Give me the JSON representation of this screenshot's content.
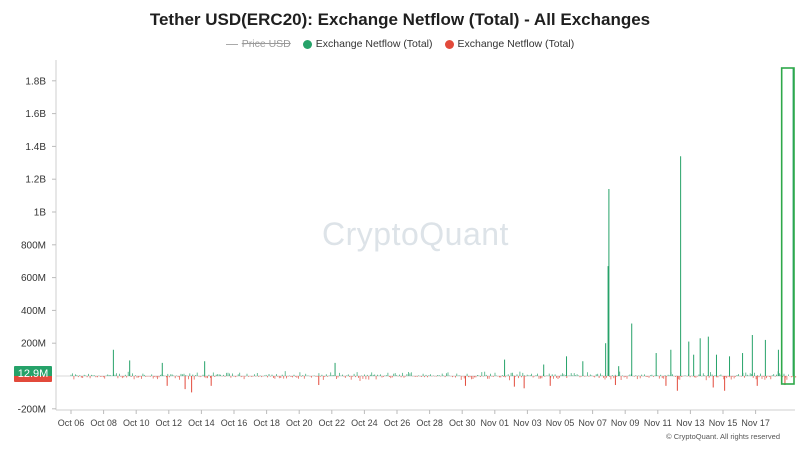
{
  "chart_data": {
    "type": "bar",
    "title": "Tether USD(ERC20): Exchange Netflow (Total) - All Exchanges",
    "legend": [
      {
        "name": "Price USD",
        "color": "#aaaaaa",
        "disabled": true,
        "marker": "line"
      },
      {
        "name": "Exchange Netflow (Total)",
        "color": "#26a269",
        "marker": "dot"
      },
      {
        "name": "Exchange Netflow (Total)",
        "color": "#e24a3b",
        "marker": "dot"
      }
    ],
    "y_ticks": [
      {
        "value": 1800000000,
        "label": "1.8B"
      },
      {
        "value": 1600000000,
        "label": "1.6B"
      },
      {
        "value": 1400000000,
        "label": "1.4B"
      },
      {
        "value": 1200000000,
        "label": "1.2B"
      },
      {
        "value": 1000000000,
        "label": "1B"
      },
      {
        "value": 800000000,
        "label": "800M"
      },
      {
        "value": 600000000,
        "label": "600M"
      },
      {
        "value": 400000000,
        "label": "400M"
      },
      {
        "value": 200000000,
        "label": "200M"
      },
      {
        "value": -200000000,
        "label": "-200M"
      }
    ],
    "ylim": [
      -200000000,
      1900000000
    ],
    "x_ticks": [
      "Oct 06",
      "Oct 08",
      "Oct 10",
      "Oct 12",
      "Oct 14",
      "Oct 16",
      "Oct 18",
      "Oct 20",
      "Oct 22",
      "Oct 24",
      "Oct 26",
      "Oct 28",
      "Oct 30",
      "Nov 01",
      "Nov 03",
      "Nov 05",
      "Nov 07",
      "Nov 09",
      "Nov 11",
      "Nov 13",
      "Nov 15",
      "Nov 17"
    ],
    "x_range_days": [
      0,
      44.5
    ],
    "positive_color": "#26a269",
    "negative_color": "#e24a3b",
    "spikes": [
      {
        "day": 2.6,
        "value": 160000000
      },
      {
        "day": 3.6,
        "value": 95000000
      },
      {
        "day": 5.6,
        "value": 80000000
      },
      {
        "day": 8.2,
        "value": 90000000
      },
      {
        "day": 16.2,
        "value": 80000000
      },
      {
        "day": 26.6,
        "value": 100000000
      },
      {
        "day": 29.0,
        "value": 70000000
      },
      {
        "day": 30.4,
        "value": 120000000
      },
      {
        "day": 31.4,
        "value": 90000000
      },
      {
        "day": 33.6,
        "value": 60000000
      },
      {
        "day": 35.9,
        "value": 140000000
      },
      {
        "day": 36.8,
        "value": 160000000
      },
      {
        "day": 38.2,
        "value": 130000000
      },
      {
        "day": 38.6,
        "value": 230000000
      },
      {
        "day": 39.6,
        "value": 130000000
      },
      {
        "day": 40.4,
        "value": 120000000
      },
      {
        "day": 41.2,
        "value": 140000000
      },
      {
        "day": 42.6,
        "value": 220000000
      },
      {
        "day": 43.4,
        "value": 160000000
      },
      {
        "day": 32.8,
        "value": 200000000
      },
      {
        "day": 33.0,
        "value": 1140000000
      },
      {
        "day": 32.95,
        "value": 670000000
      },
      {
        "day": 34.4,
        "value": 320000000
      },
      {
        "day": 37.4,
        "value": 1340000000
      },
      {
        "day": 37.9,
        "value": 210000000
      },
      {
        "day": 39.1,
        "value": 240000000
      },
      {
        "day": 41.8,
        "value": 250000000
      },
      {
        "day": 44.3,
        "value": 1880000000
      }
    ],
    "dips": [
      {
        "day": 5.9,
        "value": -60000000
      },
      {
        "day": 7.0,
        "value": -80000000
      },
      {
        "day": 7.4,
        "value": -100000000
      },
      {
        "day": 8.6,
        "value": -60000000
      },
      {
        "day": 15.2,
        "value": -55000000
      },
      {
        "day": 24.2,
        "value": -60000000
      },
      {
        "day": 27.2,
        "value": -65000000
      },
      {
        "day": 27.8,
        "value": -75000000
      },
      {
        "day": 29.4,
        "value": -60000000
      },
      {
        "day": 33.4,
        "value": -55000000
      },
      {
        "day": 36.5,
        "value": -60000000
      },
      {
        "day": 37.2,
        "value": -90000000
      },
      {
        "day": 39.4,
        "value": -70000000
      },
      {
        "day": 40.1,
        "value": -90000000
      },
      {
        "day": 42.1,
        "value": -60000000
      },
      {
        "day": 43.8,
        "value": -55000000
      }
    ],
    "current_value_label": "12.9M",
    "current_value": 12900000,
    "highlight_box_range_days": [
      43.6,
      44.5
    ],
    "highlight_color": "#2ea84a"
  },
  "watermark": "CryptoQuant",
  "credit": "© CryptoQuant. All rights reserved"
}
